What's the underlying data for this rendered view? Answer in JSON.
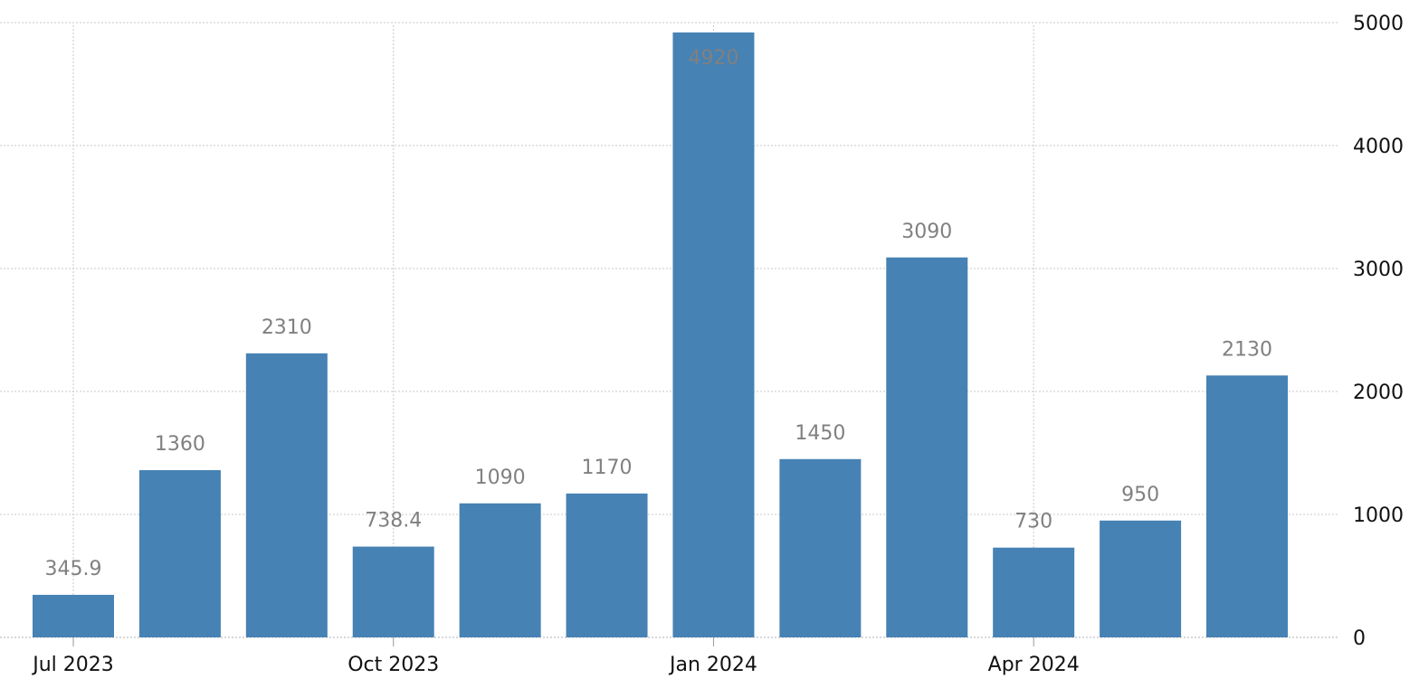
{
  "chart_data": {
    "type": "bar",
    "categories": [
      "2023-07",
      "2023-08",
      "2023-09",
      "2023-10",
      "2023-11",
      "2023-12",
      "2024-01",
      "2024-02",
      "2024-03",
      "2024-04",
      "2024-05",
      "2024-06"
    ],
    "values": [
      345.9,
      1360,
      2310,
      738.4,
      1090,
      1170,
      4920,
      1450,
      3090,
      730,
      950,
      2130
    ],
    "data_labels": [
      "345.9",
      "1360",
      "2310",
      "738.4",
      "1090",
      "1170",
      "4920",
      "1450",
      "3090",
      "730",
      "950",
      "2130"
    ],
    "x_tick_labels": [
      {
        "category": "2023-07",
        "label": "Jul 2023"
      },
      {
        "category": "2023-10",
        "label": "Oct 2023"
      },
      {
        "category": "2024-01",
        "label": "Jan 2024"
      },
      {
        "category": "2024-04",
        "label": "Apr 2024"
      }
    ],
    "y_ticks": [
      0,
      1000,
      2000,
      3000,
      4000,
      5000
    ],
    "ylim": [
      0,
      5000
    ],
    "y_axis_position": "right",
    "grid": true,
    "title": "",
    "xlabel": "",
    "ylabel": "",
    "bar_color": "#4682b4",
    "label_color": "#808080"
  }
}
